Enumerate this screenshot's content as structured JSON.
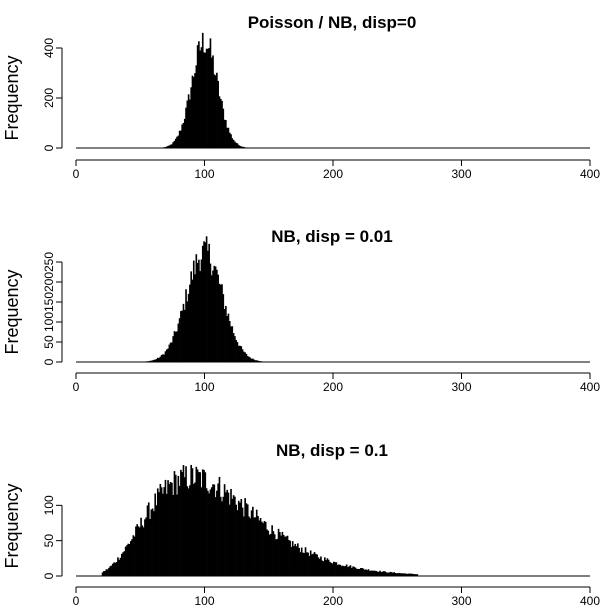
{
  "chart_data": [
    {
      "type": "bar",
      "title": "Poisson / NB, disp=0",
      "ylabel": "Frequency",
      "xlim": [
        0,
        400
      ],
      "ylim": [
        0,
        400
      ],
      "xticks": [
        "0",
        "100",
        "200",
        "300",
        "400"
      ],
      "yticks": [
        "0",
        "200",
        "400"
      ],
      "bin_width": 1,
      "histogram": {
        "center": 100,
        "sd": 10,
        "peak": 425,
        "min_x": 68,
        "max_x": 135
      }
    },
    {
      "type": "bar",
      "title": "NB, disp = 0.01",
      "ylabel": "Frequency",
      "xlim": [
        0,
        400
      ],
      "ylim": [
        0,
        250
      ],
      "xticks": [
        "0",
        "100",
        "200",
        "300",
        "400"
      ],
      "yticks": [
        "0",
        "50",
        "100",
        "150",
        "200",
        "250"
      ],
      "bin_width": 1,
      "histogram": {
        "center": 100,
        "sd": 14,
        "peak": 275,
        "min_x": 50,
        "max_x": 155
      }
    },
    {
      "type": "bar",
      "title": "NB, disp = 0.1",
      "ylabel": "Frequency",
      "xlim": [
        0,
        400
      ],
      "ylim": [
        0,
        150
      ],
      "xticks": [
        "0",
        "100",
        "200",
        "300",
        "400"
      ],
      "yticks": [
        "0",
        "50",
        "100"
      ],
      "bin_width": 1,
      "histogram": {
        "mode": 90,
        "shape": "right-skewed",
        "peak": 140,
        "min_x": 20,
        "max_x": 265
      }
    }
  ]
}
